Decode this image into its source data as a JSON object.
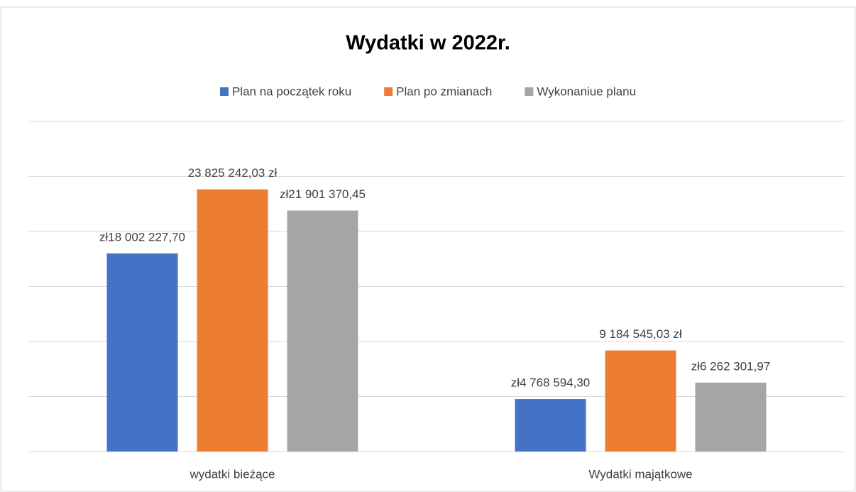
{
  "chart_data": {
    "type": "bar",
    "title": "Wydatki w 2022r.",
    "categories": [
      "wydatki bieżące",
      "Wydatki majątkowe"
    ],
    "series": [
      {
        "name": "Plan na początek roku",
        "color": "#4472c4",
        "values": [
          18002227.7,
          4768594.3
        ],
        "value_labels": [
          "zł18 002 227,70",
          "zł4 768 594,30"
        ]
      },
      {
        "name": "Plan po zmianach",
        "color": "#ed7d31",
        "values": [
          23825242.03,
          9184545.03
        ],
        "value_labels": [
          "23 825 242,03 zł",
          "9 184 545,03 zł"
        ]
      },
      {
        "name": "Wykonaniue planu",
        "color": "#a5a5a5",
        "values": [
          21901370.45,
          6262301.97
        ],
        "value_labels": [
          "zł21 901 370,45",
          "zł6 262 301,97"
        ]
      }
    ],
    "ylim": [
      0,
      30000000
    ],
    "yticks": [
      0,
      5000000,
      10000000,
      15000000,
      20000000,
      25000000,
      30000000
    ],
    "grid": true,
    "legend": "top"
  }
}
